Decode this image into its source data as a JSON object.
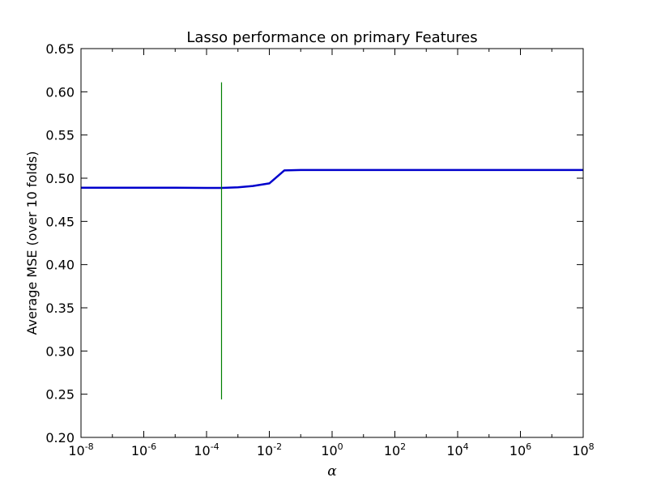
{
  "chart_data": {
    "type": "line",
    "title": "Lasso performance on primary Features",
    "xlabel": "α",
    "ylabel": "Average MSE (over 10 folds)",
    "xscale": "log",
    "xlim": [
      1e-08,
      100000000.0
    ],
    "ylim": [
      0.2,
      0.65
    ],
    "x_ticks": [
      {
        "base": "10",
        "exp": "-8",
        "value": 1e-08
      },
      {
        "base": "10",
        "exp": "-6",
        "value": 1e-06
      },
      {
        "base": "10",
        "exp": "-4",
        "value": 0.0001
      },
      {
        "base": "10",
        "exp": "-2",
        "value": 0.01
      },
      {
        "base": "10",
        "exp": "0",
        "value": 1
      },
      {
        "base": "10",
        "exp": "2",
        "value": 100
      },
      {
        "base": "10",
        "exp": "4",
        "value": 10000.0
      },
      {
        "base": "10",
        "exp": "6",
        "value": 1000000.0
      },
      {
        "base": "10",
        "exp": "8",
        "value": 100000000.0
      }
    ],
    "y_ticks": [
      "0.20",
      "0.25",
      "0.30",
      "0.35",
      "0.40",
      "0.45",
      "0.50",
      "0.55",
      "0.60",
      "0.65"
    ],
    "grid": false,
    "series": [
      {
        "color": "#0000cc",
        "x": [
          1e-08,
          1e-07,
          1e-06,
          1e-05,
          0.0001,
          0.0003,
          0.001,
          0.003,
          0.01,
          0.03,
          0.1,
          1,
          10,
          100,
          1000,
          10000,
          100000,
          1000000,
          10000000,
          100000000
        ],
        "y": [
          0.489,
          0.489,
          0.489,
          0.489,
          0.4888,
          0.4888,
          0.4895,
          0.491,
          0.494,
          0.509,
          0.5095,
          0.5095,
          0.5095,
          0.5095,
          0.5095,
          0.5095,
          0.5095,
          0.5095,
          0.5095,
          0.5095
        ]
      }
    ],
    "vline": {
      "color": "#007f00",
      "x": 0.0003,
      "y": [
        0.244,
        0.611
      ]
    }
  }
}
